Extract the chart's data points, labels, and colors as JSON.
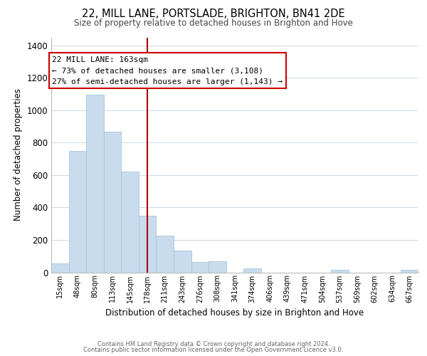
{
  "title": "22, MILL LANE, PORTSLADE, BRIGHTON, BN41 2DE",
  "subtitle": "Size of property relative to detached houses in Brighton and Hove",
  "xlabel": "Distribution of detached houses by size in Brighton and Hove",
  "ylabel": "Number of detached properties",
  "bar_color": "#c8dcee",
  "bar_edge_color": "#a8c4da",
  "bin_labels": [
    "15sqm",
    "48sqm",
    "80sqm",
    "113sqm",
    "145sqm",
    "178sqm",
    "211sqm",
    "243sqm",
    "276sqm",
    "308sqm",
    "341sqm",
    "374sqm",
    "406sqm",
    "439sqm",
    "471sqm",
    "504sqm",
    "537sqm",
    "569sqm",
    "602sqm",
    "634sqm",
    "667sqm"
  ],
  "bar_values": [
    55,
    750,
    1095,
    868,
    620,
    348,
    228,
    132,
    65,
    70,
    0,
    22,
    0,
    0,
    0,
    0,
    15,
    0,
    0,
    0,
    15
  ],
  "vline_index": 5,
  "vline_color": "#aa0000",
  "ylim": [
    0,
    1450
  ],
  "yticks": [
    0,
    200,
    400,
    600,
    800,
    1000,
    1200,
    1400
  ],
  "annotation_title": "22 MILL LANE: 163sqm",
  "annotation_line1": "← 73% of detached houses are smaller (3,108)",
  "annotation_line2": "27% of semi-detached houses are larger (1,143) →",
  "footnote1": "Contains HM Land Registry data © Crown copyright and database right 2024.",
  "footnote2": "Contains public sector information licensed under the Open Government Licence v3.0.",
  "background_color": "#ffffff",
  "grid_color": "#d0d8e4"
}
